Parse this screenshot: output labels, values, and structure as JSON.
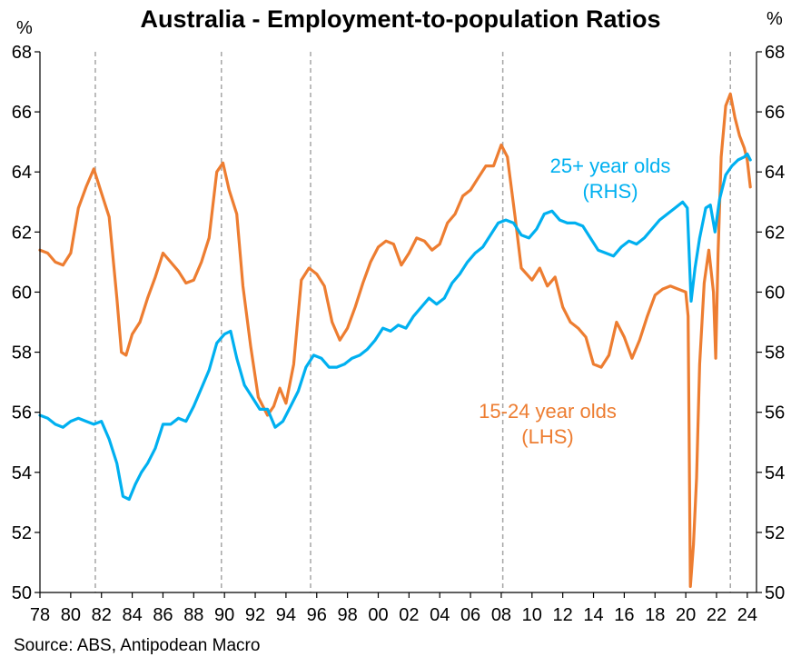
{
  "chart_data": {
    "type": "line",
    "title": "Australia - Employment-to-population Ratios",
    "source": "Source: ABS, Antipodean Macro",
    "y_unit_left": "%",
    "y_unit_right": "%",
    "ylim_left": [
      50,
      68
    ],
    "ylim_right": [
      50,
      68
    ],
    "yticks": [
      "50",
      "52",
      "54",
      "56",
      "58",
      "60",
      "62",
      "64",
      "66",
      "68"
    ],
    "xlim": [
      1978.0,
      2024.6
    ],
    "xticks": [
      "78",
      "80",
      "82",
      "84",
      "86",
      "88",
      "90",
      "92",
      "94",
      "96",
      "98",
      "00",
      "02",
      "04",
      "06",
      "08",
      "10",
      "12",
      "14",
      "16",
      "18",
      "20",
      "22",
      "24"
    ],
    "recession_lines": [
      1981.6,
      1989.8,
      1995.6,
      2008.1,
      2022.9
    ],
    "series": [
      {
        "name": "15-24 year olds (LHS)",
        "label_lines": [
          "15-24 year olds",
          "(LHS)"
        ],
        "axis": "left",
        "color": "#ED7D31",
        "points": [
          [
            1978.0,
            61.4
          ],
          [
            1978.5,
            61.3
          ],
          [
            1979.0,
            61.0
          ],
          [
            1979.5,
            60.9
          ],
          [
            1980.0,
            61.3
          ],
          [
            1980.5,
            62.8
          ],
          [
            1981.0,
            63.5
          ],
          [
            1981.5,
            64.1
          ],
          [
            1982.0,
            63.3
          ],
          [
            1982.5,
            62.5
          ],
          [
            1983.0,
            59.8
          ],
          [
            1983.3,
            58.0
          ],
          [
            1983.6,
            57.9
          ],
          [
            1984.0,
            58.6
          ],
          [
            1984.5,
            59.0
          ],
          [
            1985.0,
            59.8
          ],
          [
            1985.5,
            60.5
          ],
          [
            1986.0,
            61.3
          ],
          [
            1986.5,
            61.0
          ],
          [
            1987.0,
            60.7
          ],
          [
            1987.5,
            60.3
          ],
          [
            1988.0,
            60.4
          ],
          [
            1988.5,
            61.0
          ],
          [
            1989.0,
            61.8
          ],
          [
            1989.5,
            64.0
          ],
          [
            1989.9,
            64.3
          ],
          [
            1990.3,
            63.4
          ],
          [
            1990.8,
            62.6
          ],
          [
            1991.2,
            60.2
          ],
          [
            1991.7,
            58.2
          ],
          [
            1992.2,
            56.5
          ],
          [
            1992.8,
            55.9
          ],
          [
            1993.2,
            56.2
          ],
          [
            1993.6,
            56.8
          ],
          [
            1994.0,
            56.3
          ],
          [
            1994.5,
            57.6
          ],
          [
            1995.0,
            60.4
          ],
          [
            1995.5,
            60.8
          ],
          [
            1996.0,
            60.6
          ],
          [
            1996.5,
            60.2
          ],
          [
            1997.0,
            59.0
          ],
          [
            1997.5,
            58.4
          ],
          [
            1998.0,
            58.8
          ],
          [
            1998.5,
            59.5
          ],
          [
            1999.0,
            60.3
          ],
          [
            1999.5,
            61.0
          ],
          [
            2000.0,
            61.5
          ],
          [
            2000.5,
            61.7
          ],
          [
            2001.0,
            61.6
          ],
          [
            2001.5,
            60.9
          ],
          [
            2002.0,
            61.3
          ],
          [
            2002.5,
            61.8
          ],
          [
            2003.0,
            61.7
          ],
          [
            2003.5,
            61.4
          ],
          [
            2004.0,
            61.6
          ],
          [
            2004.5,
            62.3
          ],
          [
            2005.0,
            62.6
          ],
          [
            2005.5,
            63.2
          ],
          [
            2006.0,
            63.4
          ],
          [
            2006.5,
            63.8
          ],
          [
            2007.0,
            64.2
          ],
          [
            2007.5,
            64.2
          ],
          [
            2008.0,
            64.9
          ],
          [
            2008.4,
            64.5
          ],
          [
            2008.9,
            62.5
          ],
          [
            2009.3,
            60.8
          ],
          [
            2010.0,
            60.4
          ],
          [
            2010.5,
            60.8
          ],
          [
            2011.0,
            60.2
          ],
          [
            2011.5,
            60.5
          ],
          [
            2012.0,
            59.5
          ],
          [
            2012.5,
            59.0
          ],
          [
            2013.0,
            58.8
          ],
          [
            2013.5,
            58.5
          ],
          [
            2014.0,
            57.6
          ],
          [
            2014.5,
            57.5
          ],
          [
            2015.0,
            57.9
          ],
          [
            2015.5,
            59.0
          ],
          [
            2016.0,
            58.5
          ],
          [
            2016.5,
            57.8
          ],
          [
            2017.0,
            58.4
          ],
          [
            2017.5,
            59.2
          ],
          [
            2018.0,
            59.9
          ],
          [
            2018.5,
            60.1
          ],
          [
            2019.0,
            60.2
          ],
          [
            2019.5,
            60.1
          ],
          [
            2020.0,
            60.0
          ],
          [
            2020.15,
            59.2
          ],
          [
            2020.3,
            50.2
          ],
          [
            2020.5,
            51.6
          ],
          [
            2020.7,
            53.8
          ],
          [
            2020.9,
            57.6
          ],
          [
            2021.2,
            60.3
          ],
          [
            2021.5,
            61.4
          ],
          [
            2021.8,
            60.0
          ],
          [
            2021.95,
            57.8
          ],
          [
            2022.1,
            61.3
          ],
          [
            2022.3,
            64.5
          ],
          [
            2022.6,
            66.2
          ],
          [
            2022.9,
            66.6
          ],
          [
            2023.2,
            65.8
          ],
          [
            2023.5,
            65.2
          ],
          [
            2023.8,
            64.8
          ],
          [
            2024.0,
            64.4
          ],
          [
            2024.2,
            63.5
          ]
        ]
      },
      {
        "name": "25+ year olds (RHS)",
        "label_lines": [
          "25+ year olds",
          "(RHS)"
        ],
        "axis": "right",
        "color": "#00B0F0",
        "points": [
          [
            1978.0,
            55.9
          ],
          [
            1978.5,
            55.8
          ],
          [
            1979.0,
            55.6
          ],
          [
            1979.5,
            55.5
          ],
          [
            1980.0,
            55.7
          ],
          [
            1980.5,
            55.8
          ],
          [
            1981.0,
            55.7
          ],
          [
            1981.5,
            55.6
          ],
          [
            1982.0,
            55.7
          ],
          [
            1982.5,
            55.1
          ],
          [
            1983.0,
            54.3
          ],
          [
            1983.4,
            53.2
          ],
          [
            1983.8,
            53.1
          ],
          [
            1984.2,
            53.6
          ],
          [
            1984.6,
            54.0
          ],
          [
            1985.0,
            54.3
          ],
          [
            1985.5,
            54.8
          ],
          [
            1986.0,
            55.6
          ],
          [
            1986.5,
            55.6
          ],
          [
            1987.0,
            55.8
          ],
          [
            1987.5,
            55.7
          ],
          [
            1988.0,
            56.2
          ],
          [
            1988.5,
            56.8
          ],
          [
            1989.0,
            57.4
          ],
          [
            1989.5,
            58.3
          ],
          [
            1990.0,
            58.6
          ],
          [
            1990.4,
            58.7
          ],
          [
            1990.8,
            57.8
          ],
          [
            1991.3,
            56.9
          ],
          [
            1991.8,
            56.5
          ],
          [
            1992.3,
            56.1
          ],
          [
            1992.8,
            56.1
          ],
          [
            1993.3,
            55.5
          ],
          [
            1993.8,
            55.7
          ],
          [
            1994.3,
            56.2
          ],
          [
            1994.8,
            56.7
          ],
          [
            1995.3,
            57.5
          ],
          [
            1995.8,
            57.9
          ],
          [
            1996.3,
            57.8
          ],
          [
            1996.8,
            57.5
          ],
          [
            1997.3,
            57.5
          ],
          [
            1997.8,
            57.6
          ],
          [
            1998.3,
            57.8
          ],
          [
            1998.8,
            57.9
          ],
          [
            1999.3,
            58.1
          ],
          [
            1999.8,
            58.4
          ],
          [
            2000.3,
            58.8
          ],
          [
            2000.8,
            58.7
          ],
          [
            2001.3,
            58.9
          ],
          [
            2001.8,
            58.8
          ],
          [
            2002.3,
            59.2
          ],
          [
            2002.8,
            59.5
          ],
          [
            2003.3,
            59.8
          ],
          [
            2003.8,
            59.6
          ],
          [
            2004.3,
            59.8
          ],
          [
            2004.8,
            60.3
          ],
          [
            2005.3,
            60.6
          ],
          [
            2005.8,
            61.0
          ],
          [
            2006.3,
            61.3
          ],
          [
            2006.8,
            61.5
          ],
          [
            2007.3,
            61.9
          ],
          [
            2007.8,
            62.3
          ],
          [
            2008.3,
            62.4
          ],
          [
            2008.8,
            62.3
          ],
          [
            2009.3,
            61.9
          ],
          [
            2009.8,
            61.8
          ],
          [
            2010.3,
            62.1
          ],
          [
            2010.8,
            62.6
          ],
          [
            2011.3,
            62.7
          ],
          [
            2011.8,
            62.4
          ],
          [
            2012.3,
            62.3
          ],
          [
            2012.8,
            62.3
          ],
          [
            2013.3,
            62.2
          ],
          [
            2013.8,
            61.8
          ],
          [
            2014.3,
            61.4
          ],
          [
            2014.8,
            61.3
          ],
          [
            2015.3,
            61.2
          ],
          [
            2015.8,
            61.5
          ],
          [
            2016.3,
            61.7
          ],
          [
            2016.8,
            61.6
          ],
          [
            2017.3,
            61.8
          ],
          [
            2017.8,
            62.1
          ],
          [
            2018.3,
            62.4
          ],
          [
            2018.8,
            62.6
          ],
          [
            2019.3,
            62.8
          ],
          [
            2019.8,
            63.0
          ],
          [
            2020.1,
            62.8
          ],
          [
            2020.35,
            59.7
          ],
          [
            2020.6,
            60.8
          ],
          [
            2020.9,
            61.8
          ],
          [
            2021.3,
            62.8
          ],
          [
            2021.6,
            62.9
          ],
          [
            2021.9,
            62.0
          ],
          [
            2022.2,
            63.1
          ],
          [
            2022.6,
            63.9
          ],
          [
            2023.0,
            64.2
          ],
          [
            2023.4,
            64.4
          ],
          [
            2023.8,
            64.5
          ],
          [
            2024.0,
            64.6
          ],
          [
            2024.2,
            64.4
          ]
        ]
      }
    ]
  }
}
